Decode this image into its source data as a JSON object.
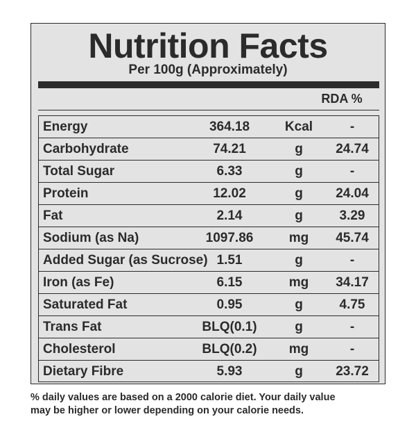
{
  "label": {
    "title": "Nutrition Facts",
    "subtitle": "Per 100g (Approximately)",
    "rda_header": "RDA %"
  },
  "rows": [
    {
      "name": "Energy",
      "value": "364.18",
      "unit": "Kcal",
      "rda": "-"
    },
    {
      "name": "Carbohydrate",
      "value": "74.21",
      "unit": "g",
      "rda": "24.74"
    },
    {
      "name": "Total Sugar",
      "value": "6.33",
      "unit": "g",
      "rda": "-"
    },
    {
      "name": "Protein",
      "value": "12.02",
      "unit": "g",
      "rda": "24.04"
    },
    {
      "name": "Fat",
      "value": "2.14",
      "unit": "g",
      "rda": "3.29"
    },
    {
      "name": "Sodium (as Na)",
      "value": "1097.86",
      "unit": "mg",
      "rda": "45.74"
    },
    {
      "name": "Added Sugar (as Sucrose)",
      "value": "1.51",
      "unit": "g",
      "rda": "-"
    },
    {
      "name": "Iron (as Fe)",
      "value": "6.15",
      "unit": "mg",
      "rda": "34.17"
    },
    {
      "name": "Saturated Fat",
      "value": "0.95",
      "unit": "g",
      "rda": "4.75"
    },
    {
      "name": "Trans Fat",
      "value": "BLQ(0.1)",
      "unit": "g",
      "rda": "-"
    },
    {
      "name": "Cholesterol",
      "value": "BLQ(0.2)",
      "unit": "mg",
      "rda": "-"
    },
    {
      "name": "Dietary Fibre",
      "value": "5.93",
      "unit": "g",
      "rda": "23.72"
    }
  ],
  "footnote": {
    "line1": "% daily values are based on a 2000 calorie diet. Your daily value",
    "line2": "may be higher or lower depending on your calorie needs."
  }
}
